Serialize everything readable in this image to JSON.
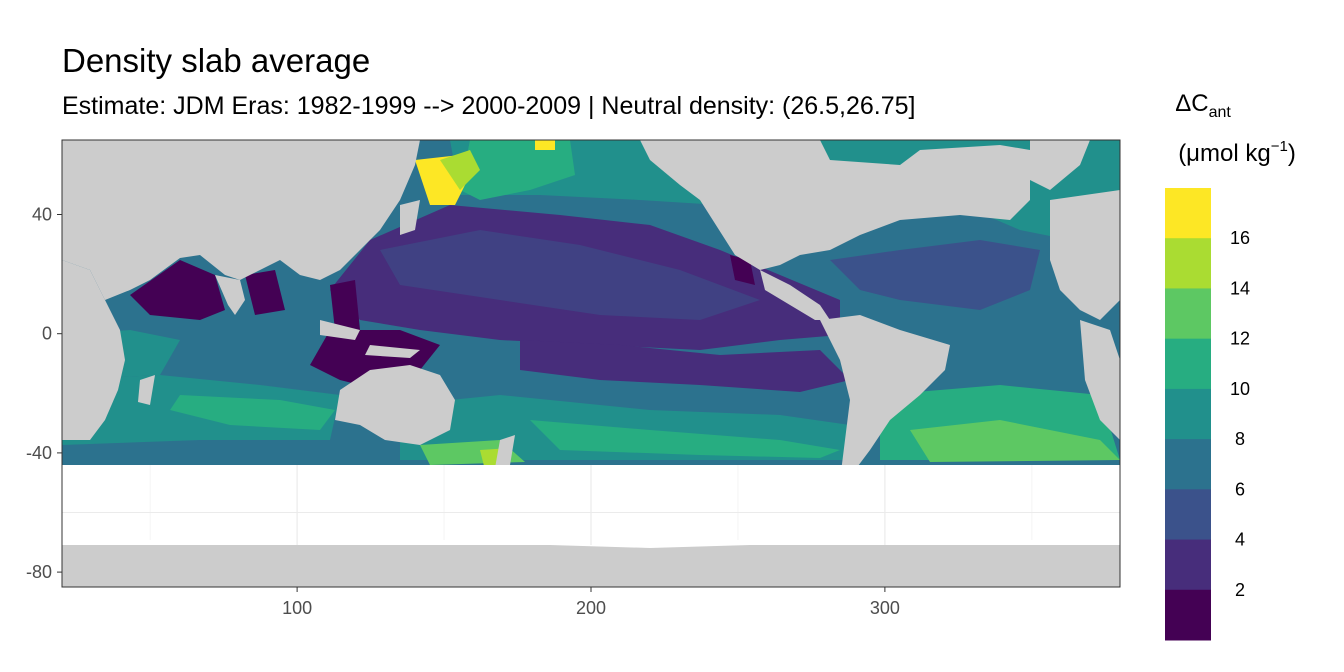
{
  "chart_data": {
    "type": "heatmap",
    "title": "Density slab average",
    "subtitle": "Estimate: JDM Eras: 1982-1999 --> 2000-2009 | Neutral density: (26.5,26.75]",
    "x_ticks": [
      "100",
      "200",
      "300"
    ],
    "x_tick_values": [
      100,
      200,
      300
    ],
    "y_ticks": [
      "40",
      "0",
      "-40",
      "-80"
    ],
    "y_tick_values": [
      40,
      0,
      -40,
      -80
    ],
    "xlim": [
      20,
      380
    ],
    "ylim": [
      -85,
      65
    ],
    "grid": true,
    "legend": {
      "position": "right",
      "title_main": "ΔC",
      "title_sub": "ant",
      "unit_text": "(μmol kg",
      "unit_sup": "−1",
      "unit_close": ")",
      "bins": [
        {
          "label": "",
          "color": "#440154"
        },
        {
          "label": "2",
          "color": "#472D7B"
        },
        {
          "label": "4",
          "color": "#3B528B"
        },
        {
          "label": "6",
          "color": "#2C728E"
        },
        {
          "label": "8",
          "color": "#21908C"
        },
        {
          "label": "10",
          "color": "#27AD81"
        },
        {
          "label": "12",
          "color": "#5DC863"
        },
        {
          "label": "14",
          "color": "#AADC32"
        },
        {
          "label": "16",
          "color": "#FDE725"
        }
      ]
    },
    "land_color": "#cccccc",
    "missing_color": "#ffffff"
  }
}
